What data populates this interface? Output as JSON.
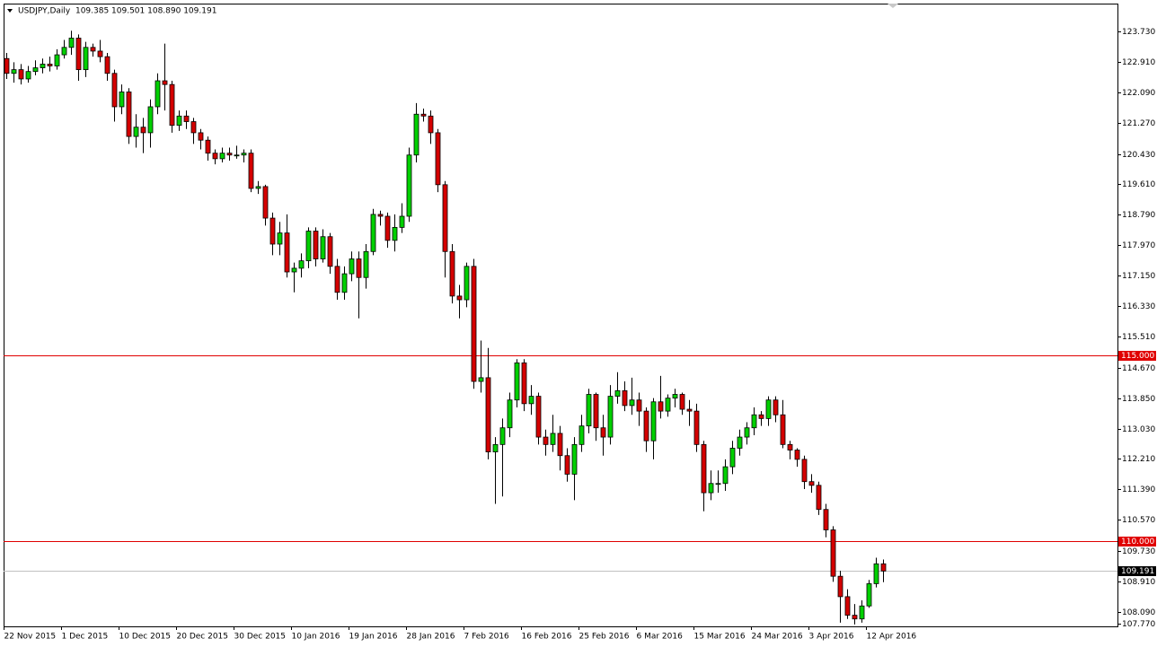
{
  "chart_data": {
    "type": "candlestick",
    "title": "USDJPY,Daily  109.385 109.501 108.890 109.191",
    "categories": [
      "22 Nov 2015",
      null,
      null,
      null,
      null,
      null,
      null,
      null,
      "1 Dec 2015",
      null,
      null,
      null,
      null,
      null,
      null,
      null,
      "10 Dec 2015",
      null,
      null,
      null,
      null,
      null,
      null,
      null,
      "20 Dec 2015",
      null,
      null,
      null,
      null,
      null,
      null,
      null,
      "30 Dec 2015",
      null,
      null,
      null,
      null,
      null,
      null,
      null,
      "10 Jan 2016",
      null,
      null,
      null,
      null,
      null,
      null,
      null,
      "19 Jan 2016",
      null,
      null,
      null,
      null,
      null,
      null,
      null,
      "28 Jan 2016",
      null,
      null,
      null,
      null,
      null,
      null,
      null,
      "7 Feb 2016",
      null,
      null,
      null,
      null,
      null,
      null,
      null,
      "16 Feb 2016",
      null,
      null,
      null,
      null,
      null,
      null,
      null,
      "25 Feb 2016",
      null,
      null,
      null,
      null,
      null,
      null,
      null,
      "6 Mar 2016",
      null,
      null,
      null,
      null,
      null,
      null,
      null,
      "15 Mar 2016",
      null,
      null,
      null,
      null,
      null,
      null,
      null,
      "24 Mar 2016",
      null,
      null,
      null,
      null,
      null,
      null,
      null,
      "3 Apr 2016",
      null,
      null,
      null,
      null,
      null,
      null,
      null,
      "12 Apr 2016",
      null,
      null
    ],
    "open": [
      123.0,
      122.6,
      122.7,
      122.45,
      122.65,
      122.75,
      122.85,
      122.8,
      123.1,
      123.3,
      123.55,
      122.7,
      123.3,
      123.2,
      123.05,
      122.6,
      121.7,
      122.1,
      120.9,
      121.15,
      121.0,
      121.7,
      122.4,
      122.3,
      121.2,
      121.45,
      121.3,
      121.0,
      120.8,
      120.45,
      120.3,
      120.45,
      120.4,
      120.4,
      120.45,
      119.5,
      119.55,
      118.7,
      118.0,
      118.3,
      117.25,
      117.35,
      117.55,
      118.35,
      117.6,
      118.2,
      117.4,
      116.7,
      117.2,
      117.6,
      117.1,
      117.8,
      118.8,
      118.75,
      118.1,
      118.45,
      118.75,
      120.4,
      121.5,
      121.45,
      121.0,
      119.6,
      117.8,
      116.6,
      116.5,
      117.4,
      114.3,
      114.4,
      112.4,
      112.6,
      113.05,
      113.8,
      114.8,
      113.7,
      113.9,
      112.8,
      112.6,
      112.9,
      112.3,
      111.8,
      112.6,
      113.1,
      113.95,
      113.05,
      112.8,
      113.9,
      114.05,
      113.65,
      113.8,
      113.5,
      112.7,
      113.75,
      113.5,
      113.85,
      113.95,
      113.55,
      113.5,
      112.6,
      111.3,
      111.55,
      111.55,
      112.0,
      112.5,
      112.8,
      113.05,
      113.4,
      113.3,
      113.8,
      113.4,
      112.6,
      112.45,
      112.2,
      111.6,
      111.5,
      110.85,
      110.3,
      109.05,
      108.5,
      108.0,
      107.9,
      108.25,
      108.85,
      109.385
    ],
    "high": [
      123.15,
      122.9,
      122.85,
      122.8,
      122.95,
      123.0,
      123.05,
      123.25,
      123.5,
      123.75,
      123.65,
      123.45,
      123.4,
      123.5,
      123.15,
      122.7,
      122.3,
      122.2,
      121.5,
      121.4,
      121.9,
      122.6,
      123.4,
      122.4,
      121.6,
      121.6,
      121.4,
      121.1,
      120.9,
      120.55,
      120.6,
      120.6,
      120.65,
      120.55,
      120.55,
      119.7,
      119.6,
      118.85,
      118.6,
      118.8,
      117.5,
      117.75,
      118.45,
      118.45,
      118.4,
      118.3,
      117.6,
      117.4,
      117.8,
      117.8,
      118.0,
      118.95,
      118.9,
      118.85,
      118.8,
      119.1,
      120.6,
      121.8,
      121.65,
      121.6,
      121.1,
      119.7,
      118.0,
      116.9,
      117.5,
      117.6,
      115.4,
      115.2,
      112.8,
      113.3,
      114.0,
      114.9,
      114.9,
      114.2,
      114.0,
      113.0,
      113.4,
      113.1,
      112.5,
      112.8,
      113.4,
      114.1,
      114.0,
      113.4,
      114.2,
      114.55,
      114.3,
      114.4,
      114.0,
      113.6,
      113.85,
      114.45,
      113.95,
      114.1,
      114.0,
      113.8,
      113.7,
      112.7,
      111.9,
      111.9,
      112.2,
      112.7,
      113.0,
      113.2,
      113.6,
      113.5,
      113.9,
      113.9,
      113.8,
      112.7,
      112.5,
      112.3,
      111.8,
      111.6,
      111.0,
      110.4,
      109.2,
      108.7,
      108.3,
      108.4,
      108.95,
      109.55,
      109.501
    ],
    "low": [
      122.45,
      122.35,
      122.3,
      122.35,
      122.55,
      122.6,
      122.65,
      122.7,
      123.0,
      123.1,
      122.4,
      122.5,
      123.05,
      122.9,
      122.4,
      121.3,
      121.5,
      120.7,
      120.6,
      120.45,
      120.6,
      121.5,
      121.6,
      121.0,
      121.05,
      121.1,
      120.7,
      120.55,
      120.25,
      120.15,
      120.2,
      120.25,
      120.3,
      120.2,
      119.4,
      119.35,
      118.5,
      117.7,
      117.7,
      117.1,
      116.7,
      117.1,
      117.35,
      117.4,
      117.5,
      117.2,
      116.5,
      116.5,
      117.0,
      116.0,
      116.8,
      117.7,
      118.5,
      117.9,
      117.8,
      118.3,
      118.6,
      120.2,
      121.3,
      120.7,
      119.4,
      117.1,
      116.4,
      116.0,
      116.3,
      114.1,
      114.0,
      112.2,
      111.0,
      111.2,
      112.8,
      113.6,
      113.5,
      113.4,
      112.6,
      112.3,
      112.4,
      111.9,
      111.6,
      111.1,
      112.4,
      112.9,
      112.7,
      112.3,
      112.6,
      113.7,
      113.5,
      113.4,
      113.1,
      112.4,
      112.2,
      113.3,
      113.35,
      113.6,
      113.4,
      113.1,
      112.4,
      110.8,
      111.1,
      111.3,
      111.35,
      111.8,
      112.3,
      112.6,
      112.85,
      113.1,
      113.1,
      113.2,
      112.5,
      112.2,
      112.0,
      111.4,
      111.3,
      110.7,
      110.1,
      108.9,
      107.8,
      107.9,
      107.75,
      107.8,
      108.2,
      108.75,
      108.89
    ],
    "close": [
      122.6,
      122.7,
      122.45,
      122.65,
      122.75,
      122.85,
      122.8,
      123.1,
      123.3,
      123.55,
      122.7,
      123.3,
      123.2,
      123.05,
      122.6,
      121.7,
      122.1,
      120.9,
      121.15,
      121.0,
      121.7,
      122.4,
      122.3,
      121.2,
      121.45,
      121.3,
      121.0,
      120.8,
      120.45,
      120.3,
      120.45,
      120.4,
      120.4,
      120.45,
      119.5,
      119.55,
      118.7,
      118.0,
      118.3,
      117.25,
      117.35,
      117.55,
      118.35,
      117.6,
      118.2,
      117.4,
      116.7,
      117.2,
      117.6,
      117.1,
      117.8,
      118.8,
      118.75,
      118.1,
      118.45,
      118.75,
      120.4,
      121.5,
      121.45,
      121.0,
      119.6,
      117.8,
      116.6,
      116.5,
      117.4,
      114.3,
      114.4,
      112.4,
      112.6,
      113.05,
      113.8,
      114.8,
      113.7,
      113.9,
      112.8,
      112.6,
      112.9,
      112.3,
      111.8,
      112.6,
      113.1,
      113.95,
      113.05,
      112.8,
      113.9,
      114.05,
      113.65,
      113.8,
      113.5,
      112.7,
      113.75,
      113.5,
      113.85,
      113.95,
      113.55,
      113.5,
      112.6,
      111.3,
      111.55,
      111.55,
      112.0,
      112.5,
      112.8,
      113.05,
      113.4,
      113.3,
      113.8,
      113.4,
      112.6,
      112.45,
      112.2,
      111.6,
      111.5,
      110.85,
      110.3,
      109.05,
      108.5,
      108.0,
      107.9,
      108.25,
      108.85,
      109.385,
      109.191
    ],
    "up_color": "#00d000",
    "down_color": "#d40000",
    "ylim": [
      107.7,
      124.48
    ],
    "yticks": [
      {
        "value": 123.73,
        "label": "123.730"
      },
      {
        "value": 122.91,
        "label": "122.910"
      },
      {
        "value": 122.09,
        "label": "122.090"
      },
      {
        "value": 121.27,
        "label": "121.270"
      },
      {
        "value": 120.43,
        "label": "120.430"
      },
      {
        "value": 119.61,
        "label": "119.610"
      },
      {
        "value": 118.79,
        "label": "118.790"
      },
      {
        "value": 117.97,
        "label": "117.970"
      },
      {
        "value": 117.15,
        "label": "117.150"
      },
      {
        "value": 116.33,
        "label": "116.330"
      },
      {
        "value": 115.51,
        "label": "115.510"
      },
      {
        "value": 114.67,
        "label": "114.670"
      },
      {
        "value": 113.85,
        "label": "113.850"
      },
      {
        "value": 113.03,
        "label": "113.030"
      },
      {
        "value": 112.21,
        "label": "112.210"
      },
      {
        "value": 111.39,
        "label": "111.390"
      },
      {
        "value": 110.57,
        "label": "110.570"
      },
      {
        "value": 109.73,
        "label": "109.730"
      },
      {
        "value": 108.91,
        "label": "108.910"
      },
      {
        "value": 108.09,
        "label": "108.090"
      },
      {
        "value": 107.77,
        "label": "107.770"
      }
    ],
    "levels": [
      {
        "value": 115,
        "label": "115.000",
        "color": "#e00000"
      },
      {
        "value": 110,
        "label": "110.000",
        "color": "#e00000"
      }
    ],
    "last_price": {
      "value": 109.191,
      "label": "109.191",
      "color": "#c0c0c0"
    }
  }
}
